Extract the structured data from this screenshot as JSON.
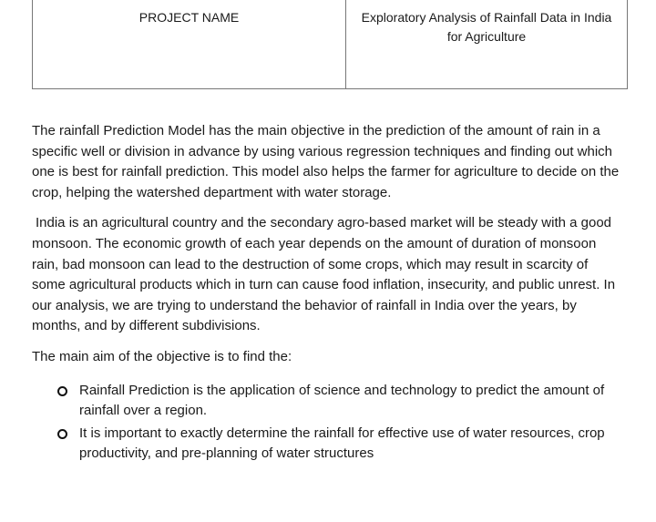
{
  "table": {
    "label": "PROJECT NAME",
    "value": "Exploratory Analysis of Rainfall Data in India for Agriculture"
  },
  "paragraphs": [
    "The rainfall Prediction Model has the main objective in the prediction of the amount of rain in a specific well or division in advance by using various regression techniques and finding out which one is best for rainfall prediction. This model also helps the farmer for agriculture to decide on the crop, helping the watershed department with water storage.",
    "India is an agricultural country and the secondary agro-based market will be steady with a good monsoon. The economic growth of each year depends on the amount of duration of monsoon rain, bad monsoon can lead to the destruction of some crops, which may result in scarcity of some agricultural products which in turn can cause food inflation, insecurity, and public unrest. In our analysis, we are trying to understand the behavior of rainfall in India over the years, by months, and by different subdivisions.",
    "The main aim of the objective is to find the:"
  ],
  "bullets": [
    "Rainfall Prediction is the application of science and technology to predict the amount of rainfall over a region.",
    "It is important to exactly determine the rainfall for effective use of water resources, crop productivity, and pre-planning of water structures"
  ],
  "icons": {
    "bullet": "hollow-circle-icon"
  }
}
